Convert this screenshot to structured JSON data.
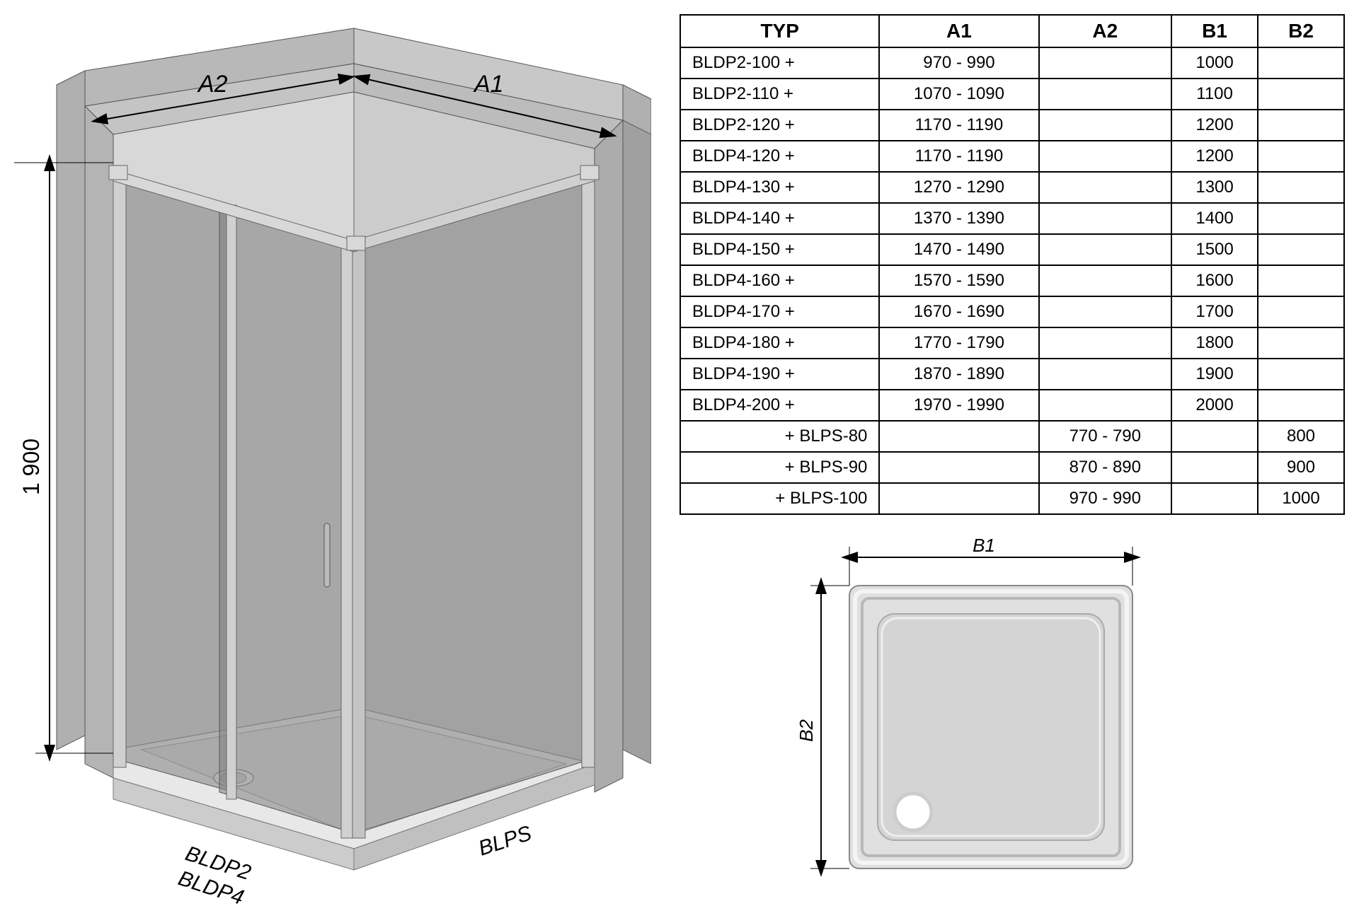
{
  "diagram3d": {
    "height_label": "1 900",
    "dim_a1": "A1",
    "dim_a2": "A2",
    "label_front_left_1": "BLDP2",
    "label_front_left_2": "BLDP4",
    "label_front_right": "BLPS",
    "colors": {
      "wall_outer": "#b8b8b8",
      "wall_inner": "#c8c8c8",
      "wall_highlight": "#d8d8d8",
      "glass": "#808080",
      "glass_light": "#989898",
      "frame": "#d0d0d0",
      "frame_shadow": "#888888",
      "tray": "#e8e8e8",
      "tray_edge": "#cccccc",
      "line": "#000000"
    }
  },
  "table": {
    "headers": [
      "TYP",
      "A1",
      "A2",
      "B1",
      "B2"
    ],
    "rows": [
      {
        "typ": "BLDP2-100 +",
        "a1": "970 - 990",
        "a2": "",
        "b1": "1000",
        "b2": "",
        "align": "left"
      },
      {
        "typ": "BLDP2-110 +",
        "a1": "1070 - 1090",
        "a2": "",
        "b1": "1100",
        "b2": "",
        "align": "left"
      },
      {
        "typ": "BLDP2-120 +",
        "a1": "1170 - 1190",
        "a2": "",
        "b1": "1200",
        "b2": "",
        "align": "left"
      },
      {
        "typ": "BLDP4-120 +",
        "a1": "1170 - 1190",
        "a2": "",
        "b1": "1200",
        "b2": "",
        "align": "left"
      },
      {
        "typ": "BLDP4-130 +",
        "a1": "1270 - 1290",
        "a2": "",
        "b1": "1300",
        "b2": "",
        "align": "left"
      },
      {
        "typ": "BLDP4-140 +",
        "a1": "1370 - 1390",
        "a2": "",
        "b1": "1400",
        "b2": "",
        "align": "left"
      },
      {
        "typ": "BLDP4-150 +",
        "a1": "1470 - 1490",
        "a2": "",
        "b1": "1500",
        "b2": "",
        "align": "left"
      },
      {
        "typ": "BLDP4-160 +",
        "a1": "1570 - 1590",
        "a2": "",
        "b1": "1600",
        "b2": "",
        "align": "left"
      },
      {
        "typ": "BLDP4-170 +",
        "a1": "1670 - 1690",
        "a2": "",
        "b1": "1700",
        "b2": "",
        "align": "left"
      },
      {
        "typ": "BLDP4-180 +",
        "a1": "1770 - 1790",
        "a2": "",
        "b1": "1800",
        "b2": "",
        "align": "left"
      },
      {
        "typ": "BLDP4-190 +",
        "a1": "1870 - 1890",
        "a2": "",
        "b1": "1900",
        "b2": "",
        "align": "left"
      },
      {
        "typ": "BLDP4-200 +",
        "a1": "1970 - 1990",
        "a2": "",
        "b1": "2000",
        "b2": "",
        "align": "left"
      },
      {
        "typ": "+ BLPS-80",
        "a1": "",
        "a2": "770 - 790",
        "b1": "",
        "b2": "800",
        "align": "right"
      },
      {
        "typ": "+ BLPS-90",
        "a1": "",
        "a2": "870 - 890",
        "b1": "",
        "b2": "900",
        "align": "right"
      },
      {
        "typ": "+ BLPS-100",
        "a1": "",
        "a2": "970 - 990",
        "b1": "",
        "b2": "1000",
        "align": "right"
      }
    ],
    "col_widths": [
      "30%",
      "24%",
      "20%",
      "13%",
      "13%"
    ]
  },
  "tray_diagram": {
    "dim_b1": "B1",
    "dim_b2": "B2",
    "colors": {
      "body": "#e0e0e0",
      "edge_light": "#f0f0f0",
      "edge_dark": "#b0b0b0",
      "inner": "#d4d4d4",
      "drain": "#ffffff",
      "line": "#000000"
    }
  }
}
